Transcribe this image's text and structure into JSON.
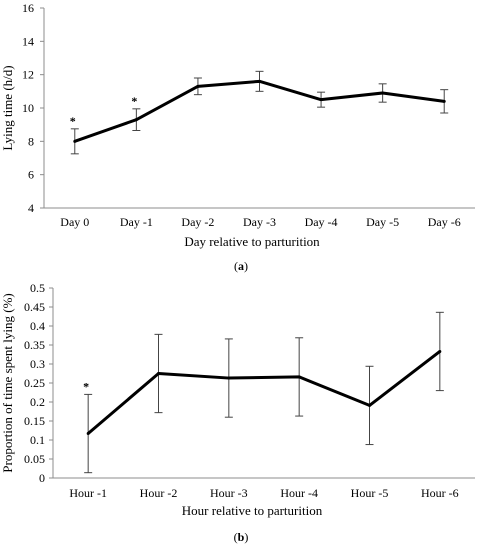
{
  "chart_data": [
    {
      "panel_label": "a",
      "type": "line",
      "categories": [
        "Day 0",
        "Day -1",
        "Day -2",
        "Day -3",
        "Day -4",
        "Day -5",
        "Day -6"
      ],
      "series": [
        {
          "values": [
            8.0,
            9.3,
            11.3,
            11.6,
            10.5,
            10.9,
            10.4
          ],
          "error": [
            0.75,
            0.65,
            0.5,
            0.6,
            0.45,
            0.55,
            0.7
          ]
        }
      ],
      "annotations": [
        {
          "category": "Day 0",
          "text": "*"
        },
        {
          "category": "Day -1",
          "text": "*"
        }
      ],
      "xlabel": "Day relative to parturition",
      "ylabel": "Lying time (h/d)",
      "ylim": [
        4,
        16
      ],
      "yticks": [
        "4",
        "6",
        "8",
        "10",
        "12",
        "14",
        "16"
      ],
      "grid": false
    },
    {
      "panel_label": "b",
      "type": "line",
      "categories": [
        "Hour -1",
        "Hour -2",
        "Hour -3",
        "Hour -4",
        "Hour -5",
        "Hour -6"
      ],
      "series": [
        {
          "values": [
            0.117,
            0.275,
            0.263,
            0.266,
            0.191,
            0.333
          ],
          "error": [
            0.103,
            0.103,
            0.103,
            0.103,
            0.103,
            0.103
          ]
        }
      ],
      "annotations": [
        {
          "category": "Hour -1",
          "text": "*"
        }
      ],
      "xlabel": "Hour relative to parturition",
      "ylabel": "Proportion of time spent lying (%)",
      "ylim": [
        0,
        0.5
      ],
      "yticks": [
        "0",
        "0.05",
        "0.1",
        "0.15",
        "0.2",
        "0.25",
        "0.3",
        "0.35",
        "0.4",
        "0.45",
        "0.5"
      ],
      "grid": false
    }
  ]
}
